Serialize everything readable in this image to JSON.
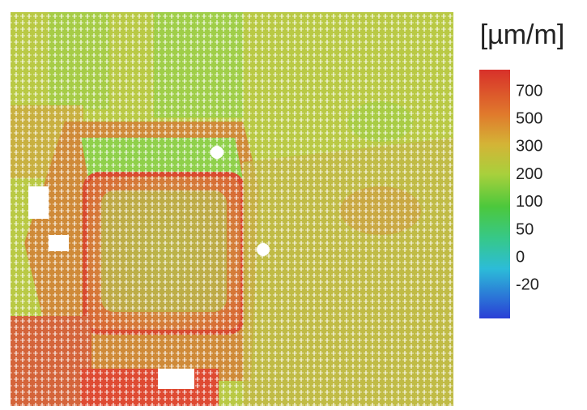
{
  "colorbar": {
    "unit": "[µm/m]",
    "ticks": [
      700,
      500,
      300,
      200,
      100,
      50,
      0,
      -20
    ]
  }
}
